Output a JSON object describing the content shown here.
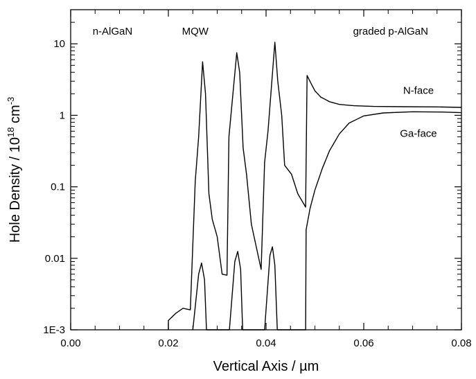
{
  "chart_data": {
    "type": "line",
    "title": "",
    "xlabel": "Vertical Axis / µm",
    "ylabel": {
      "prefix": "Hole Density / 10",
      "exp1": "18",
      "mid": " cm",
      "exp2": "-3"
    },
    "xlim": [
      0.0,
      0.08
    ],
    "ylim": [
      0.001,
      30
    ],
    "yscale": "log",
    "grid": false,
    "x_ticks": [
      0.0,
      0.02,
      0.04,
      0.06,
      0.08
    ],
    "x_tick_labels": [
      "0.00",
      "0.02",
      "0.04",
      "0.06",
      "0.08"
    ],
    "y_ticks": [
      0.001,
      0.01,
      0.1,
      1,
      10
    ],
    "y_tick_labels": [
      "1E-3",
      "0.01",
      "0.1",
      "1",
      "10"
    ],
    "annotations": [
      {
        "text": "n-AlGaN",
        "x": 0.0045,
        "y": 13.5,
        "anchor": "start"
      },
      {
        "text": "MQW",
        "x": 0.0255,
        "y": 13.5,
        "anchor": "middle"
      },
      {
        "text": "graded p-AlGaN",
        "x": 0.0655,
        "y": 13.5,
        "anchor": "middle"
      },
      {
        "text": "N-face",
        "x": 0.0712,
        "y": 2.0,
        "anchor": "middle"
      },
      {
        "text": "Ga-face",
        "x": 0.0712,
        "y": 0.5,
        "anchor": "middle"
      }
    ],
    "series": [
      {
        "name": "N-face",
        "color": "#000000",
        "points": [
          [
            0.02,
            0.001
          ],
          [
            0.02,
            0.00135
          ],
          [
            0.0215,
            0.0017
          ],
          [
            0.023,
            0.002
          ],
          [
            0.0245,
            0.0019
          ],
          [
            0.0255,
            0.12
          ],
          [
            0.0262,
            0.5
          ],
          [
            0.027,
            5.6
          ],
          [
            0.0276,
            2.0
          ],
          [
            0.0283,
            0.08
          ],
          [
            0.029,
            0.035
          ],
          [
            0.03,
            0.02
          ],
          [
            0.031,
            0.006
          ],
          [
            0.032,
            0.0058
          ],
          [
            0.0324,
            0.5
          ],
          [
            0.034,
            7.5
          ],
          [
            0.0346,
            4.0
          ],
          [
            0.0353,
            0.35
          ],
          [
            0.036,
            0.15
          ],
          [
            0.037,
            0.03
          ],
          [
            0.039,
            0.007
          ],
          [
            0.0397,
            0.22
          ],
          [
            0.0404,
            0.6
          ],
          [
            0.0418,
            10.5
          ],
          [
            0.0424,
            3.0
          ],
          [
            0.0432,
            1.0
          ],
          [
            0.0438,
            0.2
          ],
          [
            0.0452,
            0.15
          ],
          [
            0.0465,
            0.08
          ],
          [
            0.0481,
            0.052
          ],
          [
            0.0484,
            3.6
          ],
          [
            0.0492,
            2.8
          ],
          [
            0.05,
            2.2
          ],
          [
            0.0512,
            1.8
          ],
          [
            0.053,
            1.55
          ],
          [
            0.055,
            1.42
          ],
          [
            0.058,
            1.36
          ],
          [
            0.062,
            1.33
          ],
          [
            0.068,
            1.32
          ],
          [
            0.075,
            1.31
          ],
          [
            0.08,
            1.29
          ]
        ]
      },
      {
        "name": "Ga-face",
        "color": "#000000",
        "points": [
          [
            0.025,
            0.001
          ],
          [
            0.0262,
            0.006
          ],
          [
            0.0268,
            0.0086
          ],
          [
            0.0274,
            0.005
          ],
          [
            0.0278,
            0.001
          ],
          [
            0.0325,
            0.001
          ],
          [
            0.0336,
            0.009
          ],
          [
            0.0342,
            0.0125
          ],
          [
            0.0348,
            0.007
          ],
          [
            0.0352,
            0.001
          ],
          [
            0.0397,
            0.001
          ],
          [
            0.0408,
            0.011
          ],
          [
            0.0413,
            0.0145
          ],
          [
            0.0418,
            0.008
          ],
          [
            0.0423,
            0.001
          ],
          [
            0.0481,
            0.001
          ],
          [
            0.0482,
            0.025
          ],
          [
            0.049,
            0.05
          ],
          [
            0.05,
            0.09
          ],
          [
            0.0515,
            0.18
          ],
          [
            0.053,
            0.32
          ],
          [
            0.055,
            0.55
          ],
          [
            0.057,
            0.78
          ],
          [
            0.06,
            0.98
          ],
          [
            0.064,
            1.08
          ],
          [
            0.07,
            1.12
          ],
          [
            0.076,
            1.11
          ],
          [
            0.08,
            1.09
          ]
        ]
      }
    ]
  }
}
